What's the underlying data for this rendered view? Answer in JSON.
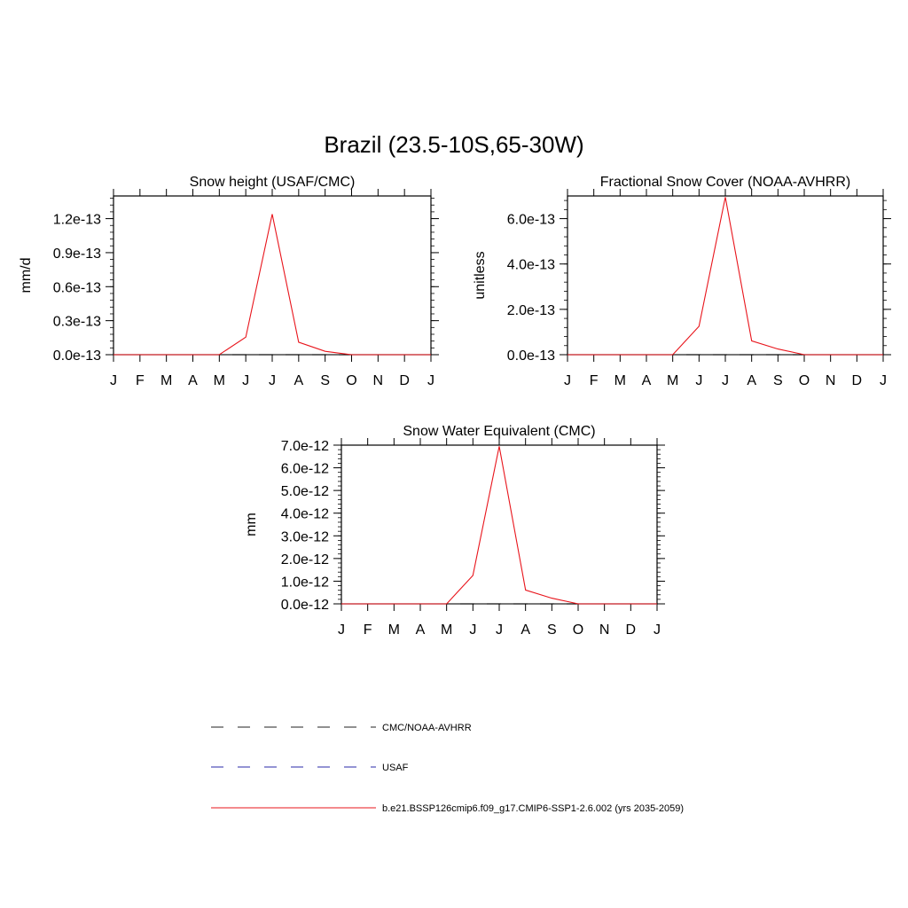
{
  "page": {
    "title": "Brazil (23.5-10S,65-30W)"
  },
  "months": [
    "J",
    "F",
    "M",
    "A",
    "M",
    "J",
    "J",
    "A",
    "S",
    "O",
    "N",
    "D",
    "J"
  ],
  "colors": {
    "model": "#e8141b",
    "usaf": "#2828a8",
    "cmc": "#222222"
  },
  "legend": {
    "items": [
      {
        "label": "CMC/NOAA-AVHRR",
        "style": "dashed-dark"
      },
      {
        "label": "USAF",
        "style": "dashed-blue"
      },
      {
        "label": "b.e21.BSSP126cmip6.f09_g17.CMIP6-SSP1-2.6.002 (yrs 2035-2059)",
        "style": "solid-red"
      }
    ]
  },
  "chart_data": [
    {
      "type": "line",
      "title": "Snow height (USAF/CMC)",
      "ylabel": "mm/d",
      "xlabel": "",
      "categories": [
        "J",
        "F",
        "M",
        "A",
        "M",
        "J",
        "J",
        "A",
        "S",
        "O",
        "N",
        "D",
        "J"
      ],
      "ylim": [
        0,
        1.4e-13
      ],
      "yticks": [
        0,
        3e-14,
        6e-14,
        9e-14,
        1.2e-13
      ],
      "yticklabels": [
        "0.0e-13",
        "0.3e-13",
        "0.6e-13",
        "0.9e-13",
        "1.2e-13"
      ],
      "series": [
        {
          "name": "b.e21.BSSP126cmip6.f09_g17.CMIP6-SSP1-2.6.002 (yrs 2035-2059)",
          "style": "solid-red",
          "values": [
            0,
            0,
            0,
            0,
            0,
            1.55e-14,
            1.24e-13,
            1.1e-14,
            3e-15,
            0,
            0,
            0,
            0
          ]
        },
        {
          "name": "USAF",
          "style": "dashed-blue",
          "values": [
            0,
            0,
            0,
            0,
            0,
            0,
            0,
            0,
            0,
            0,
            0,
            0,
            0
          ]
        },
        {
          "name": "CMC/NOAA-AVHRR",
          "style": "dashed-dark",
          "values": [
            0,
            0,
            0,
            0,
            0,
            0,
            0,
            0,
            0,
            0,
            0,
            0,
            0
          ]
        }
      ]
    },
    {
      "type": "line",
      "title": "Fractional Snow Cover (NOAA-AVHRR)",
      "ylabel": "unitless",
      "xlabel": "",
      "categories": [
        "J",
        "F",
        "M",
        "A",
        "M",
        "J",
        "J",
        "A",
        "S",
        "O",
        "N",
        "D",
        "J"
      ],
      "ylim": [
        0,
        7e-13
      ],
      "yticks": [
        0,
        2e-13,
        4e-13,
        6e-13
      ],
      "yticklabels": [
        "0.0e-13",
        "2.0e-13",
        "4.0e-13",
        "6.0e-13"
      ],
      "series": [
        {
          "name": "b.e21.BSSP126cmip6.f09_g17.CMIP6-SSP1-2.6.002 (yrs 2035-2059)",
          "style": "solid-red",
          "values": [
            0,
            0,
            0,
            0,
            0,
            1.25e-13,
            6.95e-13,
            6.1e-14,
            2.5e-14,
            0,
            0,
            0,
            0
          ]
        },
        {
          "name": "CMC/NOAA-AVHRR",
          "style": "dashed-dark",
          "values": [
            0,
            0,
            0,
            0,
            0,
            0,
            0,
            0,
            0,
            0,
            0,
            0,
            0
          ]
        }
      ]
    },
    {
      "type": "line",
      "title": "Snow Water Equivalent (CMC)",
      "ylabel": "mm",
      "xlabel": "",
      "categories": [
        "J",
        "F",
        "M",
        "A",
        "M",
        "J",
        "J",
        "A",
        "S",
        "O",
        "N",
        "D",
        "J"
      ],
      "ylim": [
        0,
        7e-12
      ],
      "yticks": [
        0,
        1e-12,
        2e-12,
        3e-12,
        4e-12,
        5e-12,
        6e-12,
        7e-12
      ],
      "yticklabels": [
        "0.0e-12",
        "1.0e-12",
        "2.0e-12",
        "3.0e-12",
        "4.0e-12",
        "5.0e-12",
        "6.0e-12",
        "7.0e-12"
      ],
      "series": [
        {
          "name": "b.e21.BSSP126cmip6.f09_g17.CMIP6-SSP1-2.6.002 (yrs 2035-2059)",
          "style": "solid-red",
          "values": [
            0,
            0,
            0,
            0,
            0,
            1.25e-12,
            6.95e-12,
            6.1e-13,
            2.5e-13,
            0,
            0,
            0,
            0
          ]
        },
        {
          "name": "CMC/NOAA-AVHRR",
          "style": "dashed-dark",
          "values": [
            0,
            0,
            0,
            0,
            0,
            0,
            0,
            0,
            0,
            0,
            0,
            0,
            0
          ]
        }
      ]
    }
  ]
}
